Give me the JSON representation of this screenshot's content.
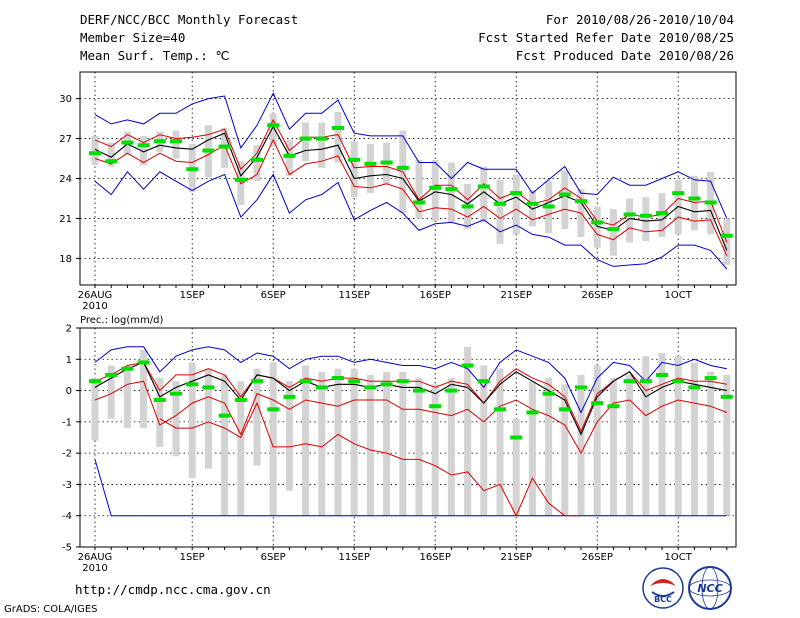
{
  "header": {
    "title": "DERF/NCC/BCC Monthly Forecast",
    "member_size": "Member Size=40",
    "variable": "Mean Surf. Temp.: ℃",
    "fcst_range": "For 2010/08/26-2010/10/04",
    "start_ref_date": "Fcst Started Refer Date 2010/08/25",
    "produced_date": "Fcst Produced Date 2010/08/26"
  },
  "footer": {
    "url": "http://cmdp.ncc.cma.gov.cn",
    "grads": "GrADS: COLA/IGES",
    "logo_bcc": "BCC",
    "logo_ncc": "NCC"
  },
  "colors": {
    "max_min": "#0000cc",
    "spread": "#dd0000",
    "mean": "#000000",
    "member": "#00dd00",
    "box": "#d3d3d3"
  },
  "chart_data": [
    {
      "type": "line",
      "title": "Mean Surf. Temp.: ℃",
      "ylim": [
        16,
        32
      ],
      "yticks": [
        18,
        21,
        24,
        27,
        30
      ],
      "xtick_labels": [
        "26AUG",
        "1SEP",
        "6SEP",
        "11SEP",
        "16SEP",
        "21SEP",
        "26SEP",
        "1OCT"
      ],
      "xtick_index": [
        0,
        6,
        11,
        16,
        21,
        26,
        31,
        36
      ],
      "x_year_label": "2010",
      "days": 40,
      "series": [
        {
          "name": "max",
          "values": [
            28.8,
            28.1,
            28.4,
            28.1,
            28.9,
            28.9,
            29.6,
            30.0,
            30.2,
            26.3,
            28.0,
            30.4,
            27.7,
            28.9,
            28.9,
            29.9,
            27.4,
            27.2,
            27.2,
            27.2,
            25.2,
            25.2,
            24.0,
            25.2,
            24.7,
            24.7,
            24.7,
            22.9,
            23.9,
            24.9,
            22.9,
            22.8,
            24.1,
            23.5,
            23.5,
            24.0,
            24.5,
            23.9,
            23.8,
            21.0
          ]
        },
        {
          "name": "upper",
          "values": [
            26.9,
            26.4,
            27.3,
            26.7,
            27.3,
            27.0,
            27.1,
            27.3,
            27.7,
            24.7,
            25.9,
            28.4,
            26.1,
            27.1,
            27.1,
            27.3,
            24.8,
            24.9,
            24.9,
            24.5,
            22.4,
            23.5,
            23.5,
            22.4,
            23.6,
            22.5,
            23.0,
            22.1,
            22.4,
            23.3,
            22.5,
            20.8,
            20.5,
            21.3,
            21.1,
            21.3,
            22.5,
            22.2,
            22.3,
            19.2
          ]
        },
        {
          "name": "mean",
          "values": [
            26.2,
            25.6,
            26.6,
            26.0,
            26.5,
            26.3,
            26.2,
            26.9,
            27.4,
            24.2,
            25.6,
            27.9,
            25.7,
            26.1,
            26.2,
            26.5,
            24.0,
            24.2,
            24.3,
            24.0,
            22.3,
            23.0,
            22.8,
            22.1,
            23.0,
            22.1,
            22.6,
            21.7,
            22.2,
            22.7,
            22.2,
            20.4,
            20.1,
            21.0,
            20.8,
            20.9,
            21.9,
            21.5,
            21.6,
            18.6
          ]
        },
        {
          "name": "lower",
          "values": [
            25.5,
            25.1,
            25.9,
            25.2,
            25.9,
            25.3,
            25.2,
            25.8,
            26.5,
            23.6,
            24.3,
            26.9,
            24.3,
            25.1,
            25.3,
            25.7,
            23.4,
            23.3,
            23.6,
            23.2,
            21.5,
            21.8,
            21.7,
            21.1,
            21.9,
            21.0,
            21.7,
            20.9,
            21.3,
            21.7,
            21.4,
            19.8,
            19.4,
            20.3,
            20.0,
            20.1,
            21.1,
            20.8,
            20.9,
            18.2
          ]
        },
        {
          "name": "min",
          "values": [
            23.8,
            22.8,
            24.5,
            23.2,
            24.5,
            23.8,
            23.1,
            23.8,
            24.3,
            21.1,
            22.4,
            24.3,
            21.4,
            22.4,
            22.8,
            23.7,
            20.9,
            21.6,
            22.2,
            21.4,
            20.1,
            20.6,
            20.7,
            20.4,
            20.9,
            20.0,
            20.5,
            19.8,
            19.6,
            19.0,
            19.0,
            17.9,
            17.4,
            17.5,
            17.6,
            18.1,
            19.0,
            19.0,
            18.6,
            17.2
          ]
        },
        {
          "name": "member",
          "values": [
            25.9,
            25.3,
            26.7,
            26.5,
            26.8,
            26.8,
            24.7,
            26.1,
            26.4,
            23.9,
            25.4,
            28.0,
            25.7,
            27.0,
            27.0,
            27.8,
            25.4,
            25.1,
            25.2,
            24.8,
            22.2,
            23.3,
            23.2,
            21.9,
            23.4,
            22.1,
            22.9,
            22.1,
            21.9,
            22.8,
            22.3,
            20.7,
            20.2,
            21.3,
            21.2,
            21.4,
            22.9,
            22.5,
            22.2,
            19.7
          ]
        },
        {
          "name": "box_top",
          "values": [
            27.2,
            26.7,
            27.5,
            27.2,
            27.5,
            27.6,
            26.6,
            28.0,
            27.8,
            25.3,
            26.5,
            28.9,
            26.9,
            28.2,
            28.2,
            29.0,
            26.8,
            26.6,
            26.7,
            27.6,
            25.4,
            25.4,
            25.2,
            23.6,
            24.9,
            23.9,
            24.3,
            23.1,
            23.8,
            24.6,
            23.2,
            21.9,
            21.7,
            22.5,
            22.6,
            22.9,
            23.9,
            24.2,
            24.5,
            21.0
          ]
        },
        {
          "name": "box_bottom",
          "values": [
            25.0,
            24.9,
            25.8,
            25.0,
            26.0,
            25.5,
            23.0,
            24.1,
            24.8,
            22.0,
            23.8,
            26.4,
            24.2,
            25.3,
            24.8,
            25.2,
            22.6,
            22.9,
            23.6,
            21.4,
            21.0,
            20.8,
            20.7,
            20.2,
            20.7,
            19.1,
            19.8,
            20.4,
            19.9,
            20.2,
            19.6,
            18.8,
            18.2,
            19.2,
            19.3,
            19.6,
            19.8,
            20.1,
            19.8,
            17.5
          ]
        }
      ]
    },
    {
      "type": "line",
      "title": "Prec.: log(mm/d)",
      "ylim": [
        -5,
        2
      ],
      "yticks": [
        -5,
        -4,
        -3,
        -2,
        -1,
        0,
        1,
        2
      ],
      "xtick_labels": [
        "26AUG",
        "1SEP",
        "6SEP",
        "11SEP",
        "16SEP",
        "21SEP",
        "26SEP",
        "1OCT"
      ],
      "xtick_index": [
        0,
        6,
        11,
        16,
        21,
        26,
        31,
        36
      ],
      "x_year_label": "2010",
      "days": 40,
      "series": [
        {
          "name": "max",
          "values": [
            0.9,
            1.3,
            1.4,
            1.4,
            0.6,
            1.1,
            1.3,
            1.4,
            1.3,
            0.9,
            1.2,
            1.1,
            0.7,
            1.0,
            1.1,
            1.1,
            0.9,
            1.0,
            0.9,
            0.8,
            0.8,
            0.7,
            0.9,
            0.7,
            0.1,
            0.9,
            1.3,
            1.1,
            0.9,
            0.4,
            -0.7,
            0.4,
            0.9,
            0.8,
            0.3,
            0.9,
            0.8,
            1.0,
            0.8,
            0.7
          ]
        },
        {
          "name": "upper",
          "values": [
            0.3,
            0.5,
            0.8,
            0.9,
            0.0,
            0.5,
            0.5,
            0.7,
            0.5,
            -0.2,
            0.5,
            0.4,
            0.1,
            0.4,
            0.3,
            0.4,
            0.4,
            0.3,
            0.3,
            0.3,
            0.3,
            0.1,
            0.3,
            0.2,
            -0.4,
            0.3,
            0.7,
            0.4,
            0.2,
            -0.2,
            -1.3,
            -0.1,
            0.3,
            0.6,
            0.0,
            0.2,
            0.4,
            0.3,
            0.3,
            0.2
          ]
        },
        {
          "name": "mean",
          "values": [
            0.1,
            0.4,
            0.7,
            0.9,
            -0.2,
            0.1,
            0.3,
            0.5,
            0.3,
            -0.3,
            0.5,
            0.4,
            0.0,
            0.3,
            0.1,
            0.2,
            0.2,
            0.1,
            0.2,
            0.1,
            0.1,
            -0.1,
            0.2,
            0.1,
            -0.4,
            0.2,
            0.6,
            0.3,
            0.0,
            -0.3,
            -1.4,
            -0.2,
            0.3,
            0.6,
            -0.2,
            0.1,
            0.3,
            0.2,
            0.1,
            0.0
          ]
        },
        {
          "name": "lower",
          "values": [
            -0.3,
            -0.1,
            0.2,
            0.3,
            -1.1,
            -0.8,
            -0.4,
            -0.2,
            -0.4,
            -1.4,
            -0.1,
            -0.3,
            -0.6,
            -0.3,
            -0.4,
            -0.5,
            -0.3,
            -0.3,
            -0.3,
            -0.6,
            -0.6,
            -0.7,
            -0.8,
            -0.6,
            -1.0,
            -0.5,
            -0.3,
            -0.6,
            -0.8,
            -1.1,
            -2.0,
            -1.0,
            -0.4,
            -0.3,
            -0.8,
            -0.5,
            -0.3,
            -0.4,
            -0.5,
            -0.7
          ]
        },
        {
          "name": "min",
          "values": [
            -2.2,
            -4.0,
            -4.0,
            -4.0,
            -4.0,
            -4.0,
            -4.0,
            -4.0,
            -4.0,
            -4.0,
            -4.0,
            -4.0,
            -4.0,
            -4.0,
            -4.0,
            -4.0,
            -4.0,
            -4.0,
            -4.0,
            -4.0,
            -4.0,
            -4.0,
            -4.0,
            -4.0,
            -4.0,
            -4.0,
            -4.0,
            -4.0,
            -4.0,
            -4.0,
            -4.0,
            -4.0,
            -4.0,
            -4.0,
            -4.0,
            -4.0,
            -4.0,
            -4.0,
            -4.0,
            -4.0
          ]
        },
        {
          "name": "min_extra",
          "values": [
            null,
            null,
            null,
            null,
            -0.9,
            -1.2,
            -1.2,
            -1.0,
            -1.2,
            -1.5,
            -0.4,
            -1.8,
            -1.8,
            -1.7,
            -1.8,
            -1.4,
            -1.7,
            -1.9,
            -2.0,
            -2.2,
            -2.2,
            -2.4,
            -2.7,
            -2.6,
            -3.2,
            -3.0,
            -4.0,
            -2.8,
            -3.6,
            -4.0,
            -4.0,
            null,
            null,
            null,
            null,
            null,
            null,
            null,
            null,
            null
          ]
        },
        {
          "name": "member",
          "values": [
            0.3,
            0.5,
            0.7,
            0.9,
            -0.3,
            -0.1,
            0.2,
            0.1,
            -0.8,
            -0.3,
            0.3,
            -0.6,
            -0.2,
            0.3,
            0.1,
            0.4,
            0.3,
            0.1,
            0.2,
            0.3,
            0.0,
            -0.5,
            0.0,
            0.8,
            0.3,
            -0.6,
            -1.5,
            -0.7,
            -0.1,
            -0.6,
            0.1,
            -0.4,
            -0.5,
            0.3,
            0.3,
            0.5,
            0.3,
            0.1,
            0.4,
            -0.2
          ]
        },
        {
          "name": "box_top",
          "values": [
            0.4,
            0.8,
            0.8,
            1.3,
            0.4,
            0.3,
            0.9,
            0.7,
            0.5,
            0.3,
            0.7,
            0.9,
            0.3,
            0.8,
            0.6,
            0.7,
            0.7,
            0.5,
            0.6,
            0.6,
            0.4,
            0.2,
            0.4,
            1.4,
            0.8,
            0.7,
            -0.9,
            0.3,
            0.4,
            0.2,
            0.5,
            0.8,
            0.4,
            0.5,
            1.1,
            1.2,
            1.1,
            0.9,
            0.6,
            0.5
          ]
        },
        {
          "name": "box_bottom",
          "values": [
            -1.6,
            -0.9,
            -1.2,
            -1.2,
            -1.8,
            -2.1,
            -2.8,
            -2.5,
            -4.0,
            -4.0,
            -2.4,
            -4.0,
            -3.2,
            -4.0,
            -4.0,
            -4.0,
            -4.0,
            -4.0,
            -4.0,
            -4.0,
            -4.0,
            -4.0,
            -4.0,
            -4.0,
            -4.0,
            -4.0,
            -4.0,
            -4.0,
            -4.0,
            -4.0,
            -4.0,
            -4.0,
            -4.0,
            -4.0,
            -4.0,
            -4.0,
            -4.0,
            -4.0,
            -4.0,
            -4.0
          ]
        }
      ]
    }
  ]
}
